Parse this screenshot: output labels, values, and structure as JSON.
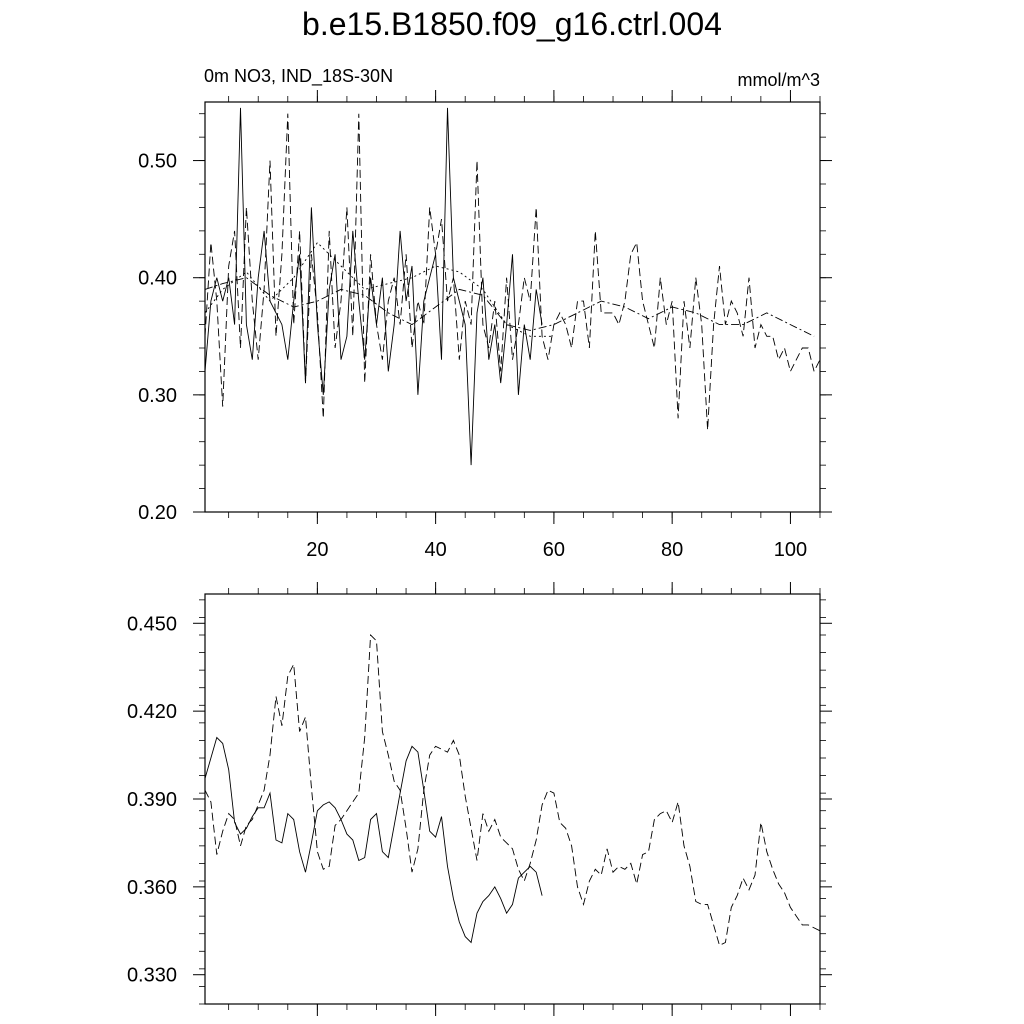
{
  "figure": {
    "title": "b.e15.B1850.f09_g16.ctrl.004",
    "left_string": "0m NO3, IND_18S-30N",
    "right_string": "mmol/m^3"
  },
  "chart_data": [
    {
      "type": "line",
      "xlim": [
        1,
        105
      ],
      "ylim": [
        0.2,
        0.55
      ],
      "yticks": [
        "0.20",
        "0.30",
        "0.40",
        "0.50"
      ],
      "ytick_values": [
        0.2,
        0.3,
        0.4,
        0.5
      ],
      "xticks": [
        "20",
        "40",
        "60",
        "80",
        "100"
      ],
      "xtick_values": [
        20,
        40,
        60,
        80,
        100
      ],
      "series": [
        {
          "style": "solid",
          "x": [
            1,
            2,
            3,
            4,
            5,
            6,
            7,
            8,
            9,
            10,
            11,
            12,
            13,
            14,
            15,
            16,
            17,
            18,
            19,
            20,
            21,
            22,
            23,
            24,
            25,
            26,
            27,
            28,
            29,
            30,
            31,
            32,
            33,
            34,
            35,
            36,
            37,
            38,
            39,
            40,
            41,
            42,
            43,
            44,
            45,
            46,
            47,
            48,
            49,
            50,
            51,
            52,
            53,
            54,
            55,
            56,
            57,
            58
          ],
          "y": [
            0.32,
            0.38,
            0.4,
            0.38,
            0.4,
            0.36,
            0.545,
            0.36,
            0.33,
            0.4,
            0.44,
            0.38,
            0.37,
            0.36,
            0.33,
            0.38,
            0.42,
            0.31,
            0.46,
            0.36,
            0.3,
            0.39,
            0.42,
            0.33,
            0.35,
            0.44,
            0.38,
            0.33,
            0.4,
            0.36,
            0.4,
            0.32,
            0.36,
            0.44,
            0.38,
            0.41,
            0.3,
            0.38,
            0.4,
            0.42,
            0.33,
            0.545,
            0.4,
            0.38,
            0.36,
            0.24,
            0.37,
            0.4,
            0.33,
            0.36,
            0.31,
            0.36,
            0.42,
            0.3,
            0.36,
            0.33,
            0.39,
            0.36
          ]
        },
        {
          "style": "dashed",
          "x": [
            1,
            2,
            3,
            4,
            5,
            6,
            7,
            8,
            9,
            10,
            11,
            12,
            13,
            14,
            15,
            16,
            17,
            18,
            19,
            20,
            21,
            22,
            23,
            24,
            25,
            26,
            27,
            28,
            29,
            30,
            31,
            32,
            33,
            34,
            35,
            36,
            37,
            38,
            39,
            40,
            41,
            42,
            43,
            44,
            45,
            46,
            47,
            48,
            49,
            50,
            51,
            52,
            53,
            54,
            55,
            56,
            57,
            58,
            59,
            60,
            61,
            62,
            63,
            64,
            65,
            66,
            67,
            68,
            69,
            70,
            71,
            72,
            73,
            74,
            75,
            76,
            77,
            78,
            79,
            80,
            81,
            82,
            83,
            84,
            85,
            86,
            87,
            88,
            89,
            90,
            91,
            92,
            93,
            94,
            95,
            96,
            97,
            98,
            99,
            100,
            101,
            102,
            103,
            104,
            105
          ],
          "y": [
            0.35,
            0.43,
            0.38,
            0.29,
            0.41,
            0.44,
            0.34,
            0.46,
            0.38,
            0.33,
            0.39,
            0.5,
            0.35,
            0.42,
            0.54,
            0.36,
            0.44,
            0.31,
            0.42,
            0.37,
            0.28,
            0.44,
            0.34,
            0.38,
            0.46,
            0.35,
            0.54,
            0.31,
            0.42,
            0.36,
            0.33,
            0.38,
            0.4,
            0.36,
            0.42,
            0.34,
            0.38,
            0.36,
            0.46,
            0.42,
            0.45,
            0.38,
            0.4,
            0.33,
            0.38,
            0.36,
            0.5,
            0.36,
            0.34,
            0.38,
            0.32,
            0.4,
            0.33,
            0.36,
            0.4,
            0.38,
            0.46,
            0.35,
            0.33,
            0.36,
            0.37,
            0.36,
            0.34,
            0.38,
            0.38,
            0.34,
            0.44,
            0.37,
            0.37,
            0.37,
            0.36,
            0.38,
            0.42,
            0.43,
            0.38,
            0.36,
            0.34,
            0.4,
            0.36,
            0.38,
            0.28,
            0.38,
            0.34,
            0.4,
            0.36,
            0.27,
            0.36,
            0.41,
            0.36,
            0.38,
            0.37,
            0.35,
            0.4,
            0.34,
            0.36,
            0.35,
            0.35,
            0.33,
            0.34,
            0.32,
            0.33,
            0.34,
            0.34,
            0.32,
            0.33
          ]
        },
        {
          "style": "dash-dot",
          "x": [
            1,
            4,
            8,
            12,
            16,
            20,
            24,
            28,
            32,
            36,
            40,
            44,
            48,
            52,
            56,
            60,
            64,
            68,
            72,
            76,
            80,
            84,
            88,
            92,
            96,
            100,
            104
          ],
          "y": [
            0.39,
            0.395,
            0.4,
            0.385,
            0.375,
            0.38,
            0.39,
            0.385,
            0.37,
            0.36,
            0.375,
            0.39,
            0.385,
            0.36,
            0.355,
            0.36,
            0.37,
            0.38,
            0.375,
            0.365,
            0.375,
            0.37,
            0.36,
            0.36,
            0.37,
            0.36,
            0.35
          ]
        },
        {
          "style": "dotted",
          "x": [
            1,
            4,
            8,
            12,
            16,
            20,
            24,
            28,
            32,
            36,
            40,
            44,
            48,
            52,
            56,
            60
          ],
          "y": [
            0.37,
            0.39,
            0.405,
            0.38,
            0.4,
            0.43,
            0.41,
            0.39,
            0.395,
            0.4,
            0.41,
            0.405,
            0.39,
            0.36,
            0.35,
            0.35
          ]
        }
      ]
    },
    {
      "type": "line",
      "xlim": [
        1,
        105
      ],
      "ylim": [
        0.32,
        0.46
      ],
      "yticks": [
        "0.330",
        "0.360",
        "0.390",
        "0.420",
        "0.450"
      ],
      "ytick_values": [
        0.33,
        0.36,
        0.39,
        0.42,
        0.45
      ],
      "xtick_values": [
        20,
        40,
        60,
        80,
        100
      ],
      "series": [
        {
          "style": "solid",
          "x": [
            1,
            2,
            3,
            4,
            5,
            6,
            7,
            8,
            9,
            10,
            11,
            12,
            13,
            14,
            15,
            16,
            17,
            18,
            19,
            20,
            21,
            22,
            23,
            24,
            25,
            26,
            27,
            28,
            29,
            30,
            31,
            32,
            33,
            34,
            35,
            36,
            37,
            38,
            39,
            40,
            41,
            42,
            43,
            44,
            45,
            46,
            47,
            48,
            49,
            50,
            51,
            52,
            53,
            54,
            55,
            56,
            57,
            58
          ],
          "y": [
            0.397,
            0.404,
            0.411,
            0.409,
            0.4,
            0.382,
            0.378,
            0.38,
            0.384,
            0.387,
            0.387,
            0.392,
            0.376,
            0.375,
            0.385,
            0.383,
            0.372,
            0.365,
            0.375,
            0.386,
            0.388,
            0.389,
            0.387,
            0.383,
            0.378,
            0.376,
            0.369,
            0.37,
            0.383,
            0.385,
            0.372,
            0.37,
            0.381,
            0.392,
            0.403,
            0.408,
            0.406,
            0.393,
            0.379,
            0.377,
            0.384,
            0.367,
            0.356,
            0.348,
            0.343,
            0.341,
            0.351,
            0.355,
            0.357,
            0.36,
            0.356,
            0.351,
            0.354,
            0.363,
            0.365,
            0.367,
            0.365,
            0.357
          ]
        },
        {
          "style": "dashed",
          "x": [
            1,
            2,
            3,
            4,
            5,
            6,
            7,
            8,
            9,
            10,
            11,
            12,
            13,
            14,
            15,
            16,
            17,
            18,
            19,
            20,
            21,
            22,
            23,
            24,
            25,
            26,
            27,
            28,
            29,
            30,
            31,
            32,
            33,
            34,
            35,
            36,
            37,
            38,
            39,
            40,
            41,
            42,
            43,
            44,
            45,
            46,
            47,
            48,
            49,
            50,
            51,
            52,
            53,
            54,
            55,
            56,
            57,
            58,
            59,
            60,
            61,
            62,
            63,
            64,
            65,
            66,
            67,
            68,
            69,
            70,
            71,
            72,
            73,
            74,
            75,
            76,
            77,
            78,
            79,
            80,
            81,
            82,
            83,
            84,
            85,
            86,
            87,
            88,
            89,
            90,
            91,
            92,
            93,
            94,
            95,
            96,
            97,
            98,
            99,
            100,
            101,
            102,
            103,
            104,
            105
          ],
          "y": [
            0.393,
            0.389,
            0.371,
            0.379,
            0.385,
            0.383,
            0.374,
            0.381,
            0.383,
            0.388,
            0.393,
            0.405,
            0.425,
            0.415,
            0.432,
            0.436,
            0.413,
            0.418,
            0.394,
            0.372,
            0.366,
            0.367,
            0.381,
            0.383,
            0.386,
            0.389,
            0.392,
            0.411,
            0.446,
            0.444,
            0.413,
            0.405,
            0.396,
            0.393,
            0.38,
            0.365,
            0.373,
            0.393,
            0.405,
            0.408,
            0.407,
            0.406,
            0.41,
            0.405,
            0.391,
            0.38,
            0.369,
            0.385,
            0.379,
            0.383,
            0.377,
            0.375,
            0.373,
            0.366,
            0.362,
            0.368,
            0.376,
            0.388,
            0.393,
            0.392,
            0.382,
            0.38,
            0.374,
            0.36,
            0.354,
            0.362,
            0.366,
            0.364,
            0.373,
            0.365,
            0.367,
            0.366,
            0.368,
            0.361,
            0.371,
            0.372,
            0.383,
            0.385,
            0.386,
            0.382,
            0.389,
            0.374,
            0.367,
            0.355,
            0.354,
            0.354,
            0.347,
            0.34,
            0.341,
            0.353,
            0.357,
            0.363,
            0.359,
            0.364,
            0.382,
            0.372,
            0.366,
            0.361,
            0.358,
            0.353,
            0.35,
            0.347,
            0.347,
            0.346,
            0.345
          ]
        }
      ]
    }
  ]
}
